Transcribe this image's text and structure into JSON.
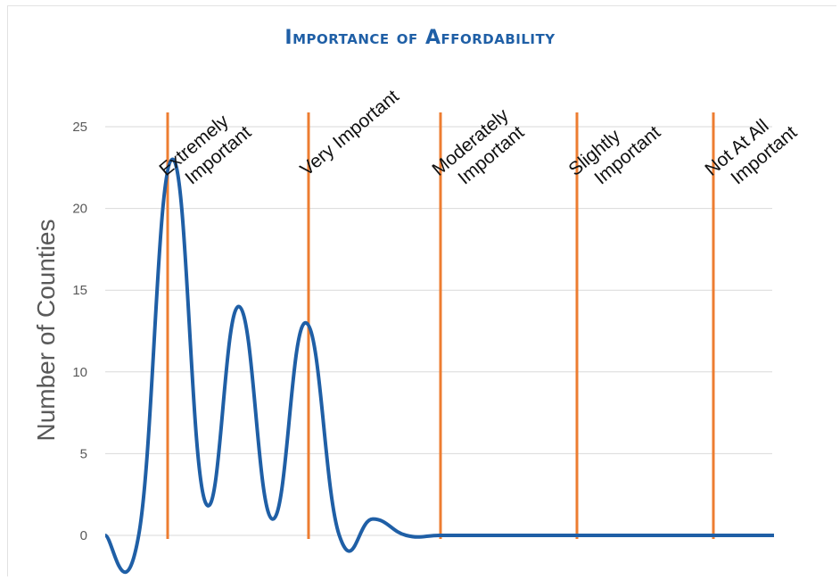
{
  "chart_data": {
    "type": "line",
    "title": "Importance of Affordability",
    "ylabel": "Number of Counties",
    "xlabel": "",
    "ylim": [
      0,
      25
    ],
    "yticks": [
      0,
      5,
      10,
      15,
      20,
      25
    ],
    "grid": true,
    "legend": "none",
    "markers": [
      {
        "lines": [
          "Extremely",
          "Important"
        ]
      },
      {
        "lines": [
          "Very Important"
        ]
      },
      {
        "lines": [
          "Moderately",
          "Important"
        ]
      },
      {
        "lines": [
          "Slightly",
          "Important"
        ]
      },
      {
        "lines": [
          "Not At All",
          "Important"
        ]
      }
    ],
    "series": [
      {
        "values": [
          0,
          0,
          23,
          2,
          14,
          1,
          13,
          0,
          1,
          0,
          0,
          0,
          0,
          0,
          0,
          0,
          0,
          0,
          0,
          0,
          0
        ]
      }
    ],
    "colors": {
      "line": "#1f5fa6",
      "marker": "#ed7d31",
      "grid": "#d9d9d9",
      "title": "#1f5fa6"
    }
  }
}
